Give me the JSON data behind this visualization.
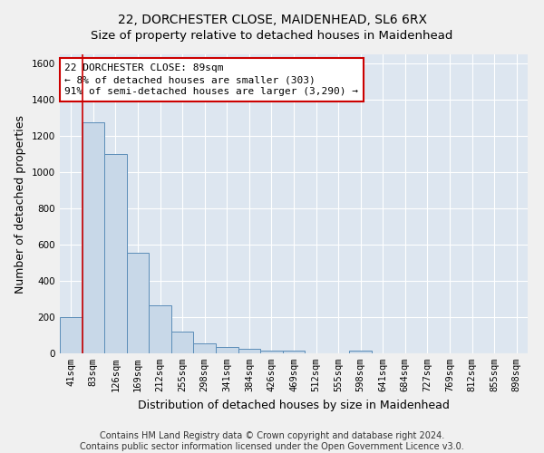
{
  "title": "22, DORCHESTER CLOSE, MAIDENHEAD, SL6 6RX",
  "subtitle": "Size of property relative to detached houses in Maidenhead",
  "xlabel": "Distribution of detached houses by size in Maidenhead",
  "ylabel": "Number of detached properties",
  "categories": [
    "41sqm",
    "83sqm",
    "126sqm",
    "169sqm",
    "212sqm",
    "255sqm",
    "298sqm",
    "341sqm",
    "384sqm",
    "426sqm",
    "469sqm",
    "512sqm",
    "555sqm",
    "598sqm",
    "641sqm",
    "684sqm",
    "727sqm",
    "769sqm",
    "812sqm",
    "855sqm",
    "898sqm"
  ],
  "values": [
    200,
    1275,
    1100,
    555,
    265,
    120,
    55,
    35,
    25,
    15,
    15,
    0,
    0,
    15,
    0,
    0,
    0,
    0,
    0,
    0,
    0
  ],
  "bar_color": "#c8d8e8",
  "bar_edge_color": "#5b8db8",
  "property_line_color": "#cc0000",
  "property_line_index": 1,
  "annotation_text": "22 DORCHESTER CLOSE: 89sqm\n← 8% of detached houses are smaller (303)\n91% of semi-detached houses are larger (3,290) →",
  "annotation_box_color": "#cc0000",
  "ylim": [
    0,
    1650
  ],
  "yticks": [
    0,
    200,
    400,
    600,
    800,
    1000,
    1200,
    1400,
    1600
  ],
  "background_color": "#dde6f0",
  "grid_color": "#ffffff",
  "footer_text": "Contains HM Land Registry data © Crown copyright and database right 2024.\nContains public sector information licensed under the Open Government Licence v3.0.",
  "title_fontsize": 10,
  "xlabel_fontsize": 9,
  "ylabel_fontsize": 9,
  "tick_fontsize": 7.5,
  "annotation_fontsize": 8,
  "footer_fontsize": 7
}
